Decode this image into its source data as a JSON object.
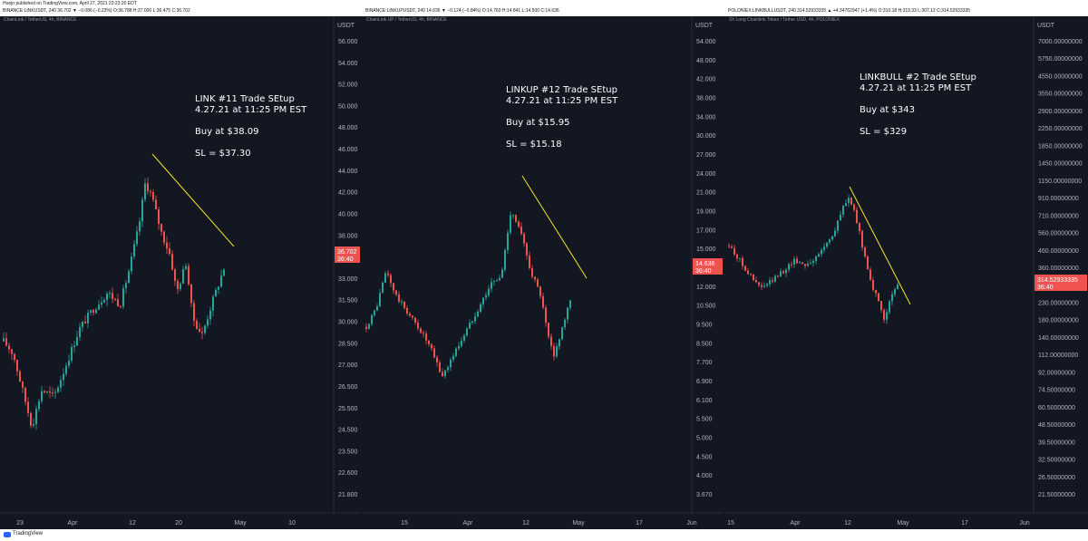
{
  "header": {
    "published": "Hoejn published on TradingView.com, April 27, 2021 23:23:20 EDT",
    "symbols": [
      "BINANCE:LINKUSDT, 240 36.702 ▼ −0.086 (−0.23%) O:36.788 H:37.000 L:36.475 C:36.702",
      "BINANCE:LINKUPUSDT, 240 14.636 ▼ −0.124 (−0.84%) O:14.760 H:14.841 L:14.500 C:14.636",
      "POLONIEX:LINKBULLUSDT, 240 314.52933335 ▲ +4.34762947 (+1.4%) O:310.18 H:319.33 L:307.12 C:314.52933335"
    ]
  },
  "footer": {
    "brand": "TradingView"
  },
  "colors": {
    "up": "#26a69a",
    "down": "#ef5350",
    "trendline": "#f5e52a",
    "background": "#131722"
  },
  "chart_data": [
    {
      "type": "candlestick",
      "subtitle": "ChainLink / TetherUS, 4h, BINANCE",
      "currency": "USDT",
      "annotation": [
        "LINK #11 Trade SEtup",
        "4.27.21 at 11:25 PM EST",
        "",
        "Buy at $38.09",
        "",
        "SL = $37.30"
      ],
      "last_price": "36.702",
      "countdown": "36:40",
      "yticks": [
        "56.000",
        "54.000",
        "52.000",
        "50.000",
        "48.000",
        "46.000",
        "44.000",
        "42.000",
        "40.000",
        "38.000",
        "34.500",
        "33.000",
        "31.500",
        "30.000",
        "28.500",
        "27.000",
        "26.500",
        "25.500",
        "24.500",
        "23.500",
        "22.600",
        "21.800"
      ],
      "xticks": [
        "23",
        "Apr",
        "12",
        "20",
        "May",
        "10"
      ],
      "trendline": {
        "from": {
          "date": "Apr 15",
          "price": 44.5
        },
        "to": {
          "date": "Apr 27",
          "price": 37.4
        }
      },
      "path_points": [
        [
          0,
          31.0
        ],
        [
          0.03,
          30.0
        ],
        [
          0.06,
          27.0
        ],
        [
          0.09,
          24.0
        ],
        [
          0.12,
          27.0
        ],
        [
          0.16,
          26.5
        ],
        [
          0.19,
          28.5
        ],
        [
          0.24,
          32.0
        ],
        [
          0.28,
          33.5
        ],
        [
          0.33,
          35.0
        ],
        [
          0.37,
          34.0
        ],
        [
          0.4,
          37.0
        ],
        [
          0.43,
          40.5
        ],
        [
          0.45,
          44.0
        ],
        [
          0.47,
          43.0
        ],
        [
          0.5,
          40.0
        ],
        [
          0.53,
          38.0
        ],
        [
          0.55,
          35.0
        ],
        [
          0.58,
          37.5
        ],
        [
          0.6,
          33.0
        ],
        [
          0.63,
          31.5
        ],
        [
          0.66,
          34.0
        ],
        [
          0.7,
          37.0
        ]
      ]
    },
    {
      "type": "candlestick",
      "subtitle": "ChainLink UP / TetherUS, 4h, BINANCE",
      "currency": "USDT",
      "annotation": [
        "LINKUP #12 Trade SEtup",
        "4.27.21 at 11:25 PM EST",
        "",
        "Buy at $15.95",
        "",
        "SL = $15.18"
      ],
      "last_price": "14.636",
      "countdown": "36:40",
      "yticks": [
        "54.000",
        "48.000",
        "42.000",
        "38.000",
        "34.000",
        "30.000",
        "27.000",
        "24.000",
        "21.000",
        "19.000",
        "17.000",
        "15.000",
        "13.500",
        "12.000",
        "10.500",
        "9.500",
        "8.500",
        "7.700",
        "6.900",
        "6.100",
        "5.500",
        "5.000",
        "4.500",
        "4.000",
        "3.670"
      ],
      "xticks": [
        "15",
        "Apr",
        "12",
        "May",
        "17",
        "Jun"
      ],
      "trendline": {
        "from": {
          "date": "Apr 14",
          "price": 24.0
        },
        "to": {
          "date": "Apr 30",
          "price": 12.5
        }
      },
      "path_points": [
        [
          0,
          12.5
        ],
        [
          0.03,
          14.0
        ],
        [
          0.06,
          17.0
        ],
        [
          0.09,
          15.0
        ],
        [
          0.13,
          13.5
        ],
        [
          0.17,
          12.0
        ],
        [
          0.2,
          10.5
        ],
        [
          0.23,
          8.5
        ],
        [
          0.26,
          10.0
        ],
        [
          0.29,
          11.5
        ],
        [
          0.32,
          13.0
        ],
        [
          0.35,
          14.5
        ],
        [
          0.38,
          16.0
        ],
        [
          0.41,
          16.5
        ],
        [
          0.44,
          22.0
        ],
        [
          0.47,
          20.0
        ],
        [
          0.5,
          17.0
        ],
        [
          0.53,
          15.0
        ],
        [
          0.55,
          12.0
        ],
        [
          0.57,
          10.0
        ],
        [
          0.59,
          12.0
        ],
        [
          0.62,
          14.6
        ]
      ]
    },
    {
      "type": "candlestick",
      "subtitle": "3X Long Chainlink Token / Tether USD, 4h, POLONIEX",
      "currency": "USDT",
      "annotation": [
        "LINKBULL #2 Trade SEtup",
        "4.27.21 at 11:25 PM EST",
        "",
        "Buy at $343",
        "",
        "SL = $329"
      ],
      "last_price": "314.52933335",
      "countdown": "36:40",
      "yticks": [
        "7000.00000000",
        "5750.00000000",
        "4550.00000000",
        "3550.00000000",
        "2900.00000000",
        "2250.00000000",
        "1850.00000000",
        "1450.00000000",
        "1150.00000000",
        "910.00000000",
        "710.00000000",
        "560.00000000",
        "460.00000000",
        "360.00000000",
        "290.00000000",
        "230.00000000",
        "180.00000000",
        "140.00000000",
        "112.00000000",
        "92.00000000",
        "74.50000000",
        "60.50000000",
        "48.50000000",
        "39.50000000",
        "32.50000000",
        "26.50000000",
        "21.50000000"
      ],
      "xticks": [
        "15",
        "Apr",
        "12",
        "May",
        "17",
        "Jun"
      ],
      "trendline": {
        "from": {
          "date": "Apr 14",
          "price": 950
        },
        "to": {
          "date": "May 1",
          "price": 270
        }
      },
      "path_points": [
        [
          0,
          500
        ],
        [
          0.03,
          440
        ],
        [
          0.06,
          380
        ],
        [
          0.09,
          330
        ],
        [
          0.12,
          300
        ],
        [
          0.16,
          330
        ],
        [
          0.2,
          370
        ],
        [
          0.24,
          420
        ],
        [
          0.28,
          400
        ],
        [
          0.32,
          430
        ],
        [
          0.36,
          520
        ],
        [
          0.39,
          600
        ],
        [
          0.42,
          800
        ],
        [
          0.44,
          900
        ],
        [
          0.46,
          750
        ],
        [
          0.49,
          500
        ],
        [
          0.51,
          380
        ],
        [
          0.53,
          300
        ],
        [
          0.55,
          250
        ],
        [
          0.57,
          210
        ],
        [
          0.59,
          250
        ],
        [
          0.62,
          314
        ]
      ]
    }
  ]
}
